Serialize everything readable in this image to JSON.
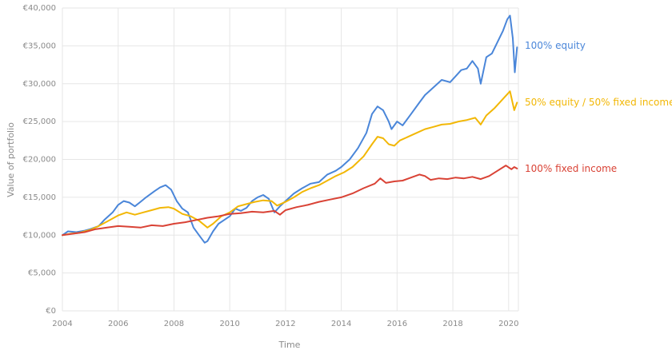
{
  "chart_data": {
    "type": "line",
    "title": "",
    "xlabel": "Time",
    "ylabel": "Value of portfolio",
    "xlim": [
      2004.0,
      2020.35
    ],
    "ylim": [
      0,
      40000
    ],
    "x_ticks": [
      "2004",
      "2006",
      "2008",
      "2010",
      "2012",
      "2014",
      "2016",
      "2018",
      "2020"
    ],
    "x_tick_values": [
      2004,
      2006,
      2008,
      2010,
      2012,
      2014,
      2016,
      2018,
      2020
    ],
    "y_ticks": [
      "€0",
      "€5,000",
      "€10,000",
      "€15,000",
      "€20,000",
      "€25,000",
      "€30,000",
      "€35,000",
      "€40,000"
    ],
    "y_tick_values": [
      0,
      5000,
      10000,
      15000,
      20000,
      25000,
      30000,
      35000,
      40000
    ],
    "grid": true,
    "legend": "labels at right end of lines",
    "series": [
      {
        "name": "100% equity",
        "color": "#4a86d9",
        "points": [
          [
            2004.0,
            10000
          ],
          [
            2004.2,
            10500
          ],
          [
            2004.5,
            10400
          ],
          [
            2004.8,
            10600
          ],
          [
            2005.0,
            10800
          ],
          [
            2005.3,
            11200
          ],
          [
            2005.5,
            12000
          ],
          [
            2005.8,
            13000
          ],
          [
            2006.0,
            14000
          ],
          [
            2006.2,
            14500
          ],
          [
            2006.4,
            14300
          ],
          [
            2006.6,
            13800
          ],
          [
            2006.8,
            14400
          ],
          [
            2007.0,
            15000
          ],
          [
            2007.3,
            15800
          ],
          [
            2007.5,
            16300
          ],
          [
            2007.7,
            16600
          ],
          [
            2007.9,
            16000
          ],
          [
            2008.1,
            14500
          ],
          [
            2008.3,
            13500
          ],
          [
            2008.5,
            13000
          ],
          [
            2008.7,
            11000
          ],
          [
            2008.9,
            10000
          ],
          [
            2009.1,
            9000
          ],
          [
            2009.2,
            9200
          ],
          [
            2009.4,
            10500
          ],
          [
            2009.6,
            11500
          ],
          [
            2009.8,
            12000
          ],
          [
            2010.0,
            12500
          ],
          [
            2010.2,
            13500
          ],
          [
            2010.4,
            13200
          ],
          [
            2010.6,
            13600
          ],
          [
            2010.8,
            14500
          ],
          [
            2011.0,
            15000
          ],
          [
            2011.2,
            15300
          ],
          [
            2011.4,
            14800
          ],
          [
            2011.6,
            13000
          ],
          [
            2011.8,
            13800
          ],
          [
            2012.0,
            14500
          ],
          [
            2012.3,
            15500
          ],
          [
            2012.6,
            16200
          ],
          [
            2012.9,
            16800
          ],
          [
            2013.2,
            17000
          ],
          [
            2013.5,
            18000
          ],
          [
            2013.8,
            18500
          ],
          [
            2014.0,
            19000
          ],
          [
            2014.3,
            20000
          ],
          [
            2014.6,
            21500
          ],
          [
            2014.9,
            23500
          ],
          [
            2015.1,
            26000
          ],
          [
            2015.3,
            27000
          ],
          [
            2015.5,
            26500
          ],
          [
            2015.7,
            25000
          ],
          [
            2015.8,
            24000
          ],
          [
            2016.0,
            25000
          ],
          [
            2016.2,
            24500
          ],
          [
            2016.5,
            26000
          ],
          [
            2016.8,
            27500
          ],
          [
            2017.0,
            28500
          ],
          [
            2017.3,
            29500
          ],
          [
            2017.6,
            30500
          ],
          [
            2017.9,
            30200
          ],
          [
            2018.1,
            31000
          ],
          [
            2018.3,
            31800
          ],
          [
            2018.5,
            32000
          ],
          [
            2018.7,
            33000
          ],
          [
            2018.9,
            32000
          ],
          [
            2019.0,
            30000
          ],
          [
            2019.2,
            33500
          ],
          [
            2019.4,
            34000
          ],
          [
            2019.6,
            35500
          ],
          [
            2019.8,
            37000
          ],
          [
            2019.95,
            38500
          ],
          [
            2020.05,
            39000
          ],
          [
            2020.15,
            36000
          ],
          [
            2020.22,
            31500
          ],
          [
            2020.3,
            34800
          ]
        ]
      },
      {
        "name": "50% equity / 50% fixed income",
        "color": "#f2b705",
        "points": [
          [
            2004.0,
            10000
          ],
          [
            2004.3,
            10200
          ],
          [
            2004.6,
            10300
          ],
          [
            2005.0,
            10700
          ],
          [
            2005.3,
            11200
          ],
          [
            2005.6,
            11800
          ],
          [
            2006.0,
            12600
          ],
          [
            2006.3,
            13000
          ],
          [
            2006.6,
            12700
          ],
          [
            2006.9,
            13000
          ],
          [
            2007.2,
            13300
          ],
          [
            2007.5,
            13600
          ],
          [
            2007.8,
            13700
          ],
          [
            2008.0,
            13500
          ],
          [
            2008.3,
            12800
          ],
          [
            2008.6,
            12500
          ],
          [
            2008.9,
            11900
          ],
          [
            2009.2,
            11000
          ],
          [
            2009.4,
            11500
          ],
          [
            2009.7,
            12500
          ],
          [
            2010.0,
            13000
          ],
          [
            2010.3,
            13800
          ],
          [
            2010.6,
            14100
          ],
          [
            2010.9,
            14400
          ],
          [
            2011.2,
            14600
          ],
          [
            2011.5,
            14500
          ],
          [
            2011.7,
            13900
          ],
          [
            2012.0,
            14400
          ],
          [
            2012.3,
            15000
          ],
          [
            2012.6,
            15700
          ],
          [
            2012.9,
            16200
          ],
          [
            2013.2,
            16600
          ],
          [
            2013.5,
            17200
          ],
          [
            2013.8,
            17800
          ],
          [
            2014.1,
            18300
          ],
          [
            2014.4,
            19000
          ],
          [
            2014.8,
            20400
          ],
          [
            2015.1,
            22000
          ],
          [
            2015.3,
            23000
          ],
          [
            2015.5,
            22800
          ],
          [
            2015.7,
            22000
          ],
          [
            2015.9,
            21800
          ],
          [
            2016.1,
            22500
          ],
          [
            2016.4,
            23000
          ],
          [
            2016.7,
            23500
          ],
          [
            2017.0,
            24000
          ],
          [
            2017.3,
            24300
          ],
          [
            2017.6,
            24600
          ],
          [
            2017.9,
            24700
          ],
          [
            2018.2,
            25000
          ],
          [
            2018.5,
            25200
          ],
          [
            2018.8,
            25500
          ],
          [
            2019.0,
            24600
          ],
          [
            2019.2,
            25800
          ],
          [
            2019.5,
            26800
          ],
          [
            2019.8,
            28000
          ],
          [
            2020.05,
            29000
          ],
          [
            2020.2,
            26500
          ],
          [
            2020.3,
            27500
          ]
        ]
      },
      {
        "name": "100% fixed income",
        "color": "#d94235",
        "points": [
          [
            2004.0,
            10000
          ],
          [
            2004.4,
            10200
          ],
          [
            2004.8,
            10400
          ],
          [
            2005.2,
            10800
          ],
          [
            2005.6,
            11000
          ],
          [
            2006.0,
            11200
          ],
          [
            2006.4,
            11100
          ],
          [
            2006.8,
            11000
          ],
          [
            2007.2,
            11300
          ],
          [
            2007.6,
            11200
          ],
          [
            2008.0,
            11500
          ],
          [
            2008.4,
            11700
          ],
          [
            2008.8,
            12000
          ],
          [
            2009.2,
            12300
          ],
          [
            2009.6,
            12500
          ],
          [
            2010.0,
            12800
          ],
          [
            2010.4,
            12900
          ],
          [
            2010.8,
            13100
          ],
          [
            2011.2,
            13000
          ],
          [
            2011.6,
            13200
          ],
          [
            2011.8,
            12700
          ],
          [
            2012.0,
            13300
          ],
          [
            2012.4,
            13700
          ],
          [
            2012.8,
            14000
          ],
          [
            2013.2,
            14400
          ],
          [
            2013.6,
            14700
          ],
          [
            2014.0,
            15000
          ],
          [
            2014.4,
            15500
          ],
          [
            2014.8,
            16200
          ],
          [
            2015.2,
            16800
          ],
          [
            2015.4,
            17500
          ],
          [
            2015.6,
            16900
          ],
          [
            2015.9,
            17100
          ],
          [
            2016.2,
            17200
          ],
          [
            2016.5,
            17600
          ],
          [
            2016.8,
            18000
          ],
          [
            2017.0,
            17800
          ],
          [
            2017.2,
            17300
          ],
          [
            2017.5,
            17500
          ],
          [
            2017.8,
            17400
          ],
          [
            2018.1,
            17600
          ],
          [
            2018.4,
            17500
          ],
          [
            2018.7,
            17700
          ],
          [
            2019.0,
            17400
          ],
          [
            2019.3,
            17800
          ],
          [
            2019.6,
            18500
          ],
          [
            2019.9,
            19200
          ],
          [
            2020.1,
            18700
          ],
          [
            2020.2,
            19000
          ],
          [
            2020.3,
            18800
          ]
        ]
      }
    ]
  }
}
